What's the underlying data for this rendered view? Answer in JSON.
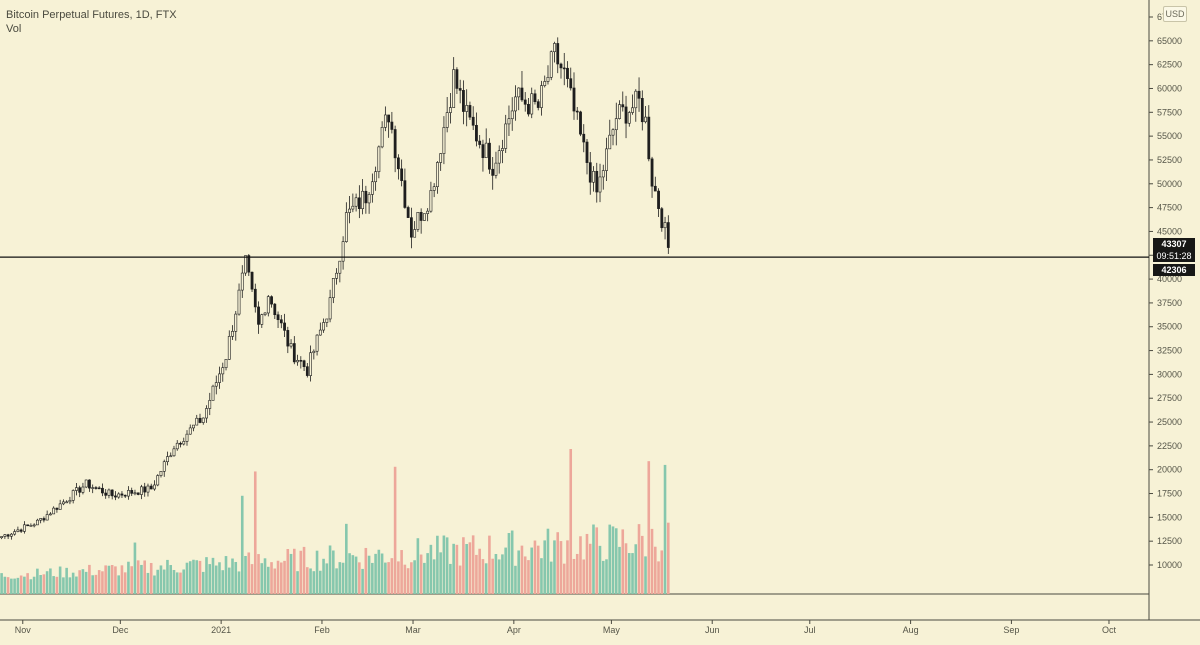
{
  "legend": {
    "title": "Bitcoin Perpetual Futures, 1D, FTX",
    "volume_label": "Vol"
  },
  "currency": "USD",
  "last_price_label": "43307",
  "countdown_label": "09:51:28",
  "line_price_label": "42306",
  "colors": {
    "background": "#f7f2d6",
    "candle": "#1e1e1e",
    "volume_up": "#86c7ad",
    "volume_down": "#eda79a",
    "grid_axis": "#4a4a40",
    "axis_text": "#555548"
  },
  "chart_data": {
    "type": "candlestick",
    "y_axis": {
      "ticks": [
        {
          "value": 10000,
          "label": "10000"
        },
        {
          "value": 12500,
          "label": "12500"
        },
        {
          "value": 15000,
          "label": "15000"
        },
        {
          "value": 17500,
          "label": "17500"
        },
        {
          "value": 20000,
          "label": "20000"
        },
        {
          "value": 22500,
          "label": "22500"
        },
        {
          "value": 25000,
          "label": "25000"
        },
        {
          "value": 27500,
          "label": "27500"
        },
        {
          "value": 30000,
          "label": "30000"
        },
        {
          "value": 32500,
          "label": "32500"
        },
        {
          "value": 35000,
          "label": "35000"
        },
        {
          "value": 37500,
          "label": "37500"
        },
        {
          "value": 40000,
          "label": "40000"
        },
        {
          "value": 42500,
          "label": "42500"
        },
        {
          "value": 45000,
          "label": "45000"
        },
        {
          "value": 47500,
          "label": "47500"
        },
        {
          "value": 50000,
          "label": "50000"
        },
        {
          "value": 52500,
          "label": "52500"
        },
        {
          "value": 55000,
          "label": "55000"
        },
        {
          "value": 57500,
          "label": "57500"
        },
        {
          "value": 60000,
          "label": "60000"
        },
        {
          "value": 62500,
          "label": "62500"
        },
        {
          "value": 65000,
          "label": "65000"
        },
        {
          "value": 67500,
          "label": "67500"
        }
      ],
      "range": [
        10000,
        67500
      ]
    },
    "x_axis": {
      "start_date": "2020-10-25",
      "end_date": "2021-10-13",
      "ticks": [
        {
          "date": "2020-11-01",
          "label": "Nov"
        },
        {
          "date": "2020-12-01",
          "label": "Dec"
        },
        {
          "date": "2021-01-01",
          "label": "2021"
        },
        {
          "date": "2021-02-01",
          "label": "Feb"
        },
        {
          "date": "2021-03-01",
          "label": "Mar"
        },
        {
          "date": "2021-04-01",
          "label": "Apr"
        },
        {
          "date": "2021-05-01",
          "label": "May"
        },
        {
          "date": "2021-06-01",
          "label": "Jun"
        },
        {
          "date": "2021-07-01",
          "label": "Jul"
        },
        {
          "date": "2021-08-01",
          "label": "Aug"
        },
        {
          "date": "2021-09-01",
          "label": "Sep"
        },
        {
          "date": "2021-10-01",
          "label": "Oct"
        }
      ]
    },
    "horizontal_line_price": 42306,
    "last_price": 43307,
    "price_anchors": [
      {
        "date": "2020-10-25",
        "price": 13000
      },
      {
        "date": "2020-11-05",
        "price": 14500
      },
      {
        "date": "2020-11-20",
        "price": 18500
      },
      {
        "date": "2020-11-28",
        "price": 17300
      },
      {
        "date": "2020-12-10",
        "price": 18000
      },
      {
        "date": "2020-12-17",
        "price": 22500
      },
      {
        "date": "2020-12-26",
        "price": 25500
      },
      {
        "date": "2021-01-02",
        "price": 32000
      },
      {
        "date": "2021-01-08",
        "price": 41500
      },
      {
        "date": "2021-01-12",
        "price": 35000
      },
      {
        "date": "2021-01-15",
        "price": 38500
      },
      {
        "date": "2021-01-22",
        "price": 32500
      },
      {
        "date": "2021-01-27",
        "price": 30500
      },
      {
        "date": "2021-02-03",
        "price": 37500
      },
      {
        "date": "2021-02-08",
        "price": 46500
      },
      {
        "date": "2021-02-14",
        "price": 48800
      },
      {
        "date": "2021-02-21",
        "price": 57500
      },
      {
        "date": "2021-02-28",
        "price": 45000
      },
      {
        "date": "2021-03-06",
        "price": 49000
      },
      {
        "date": "2021-03-13",
        "price": 61200
      },
      {
        "date": "2021-03-17",
        "price": 57000
      },
      {
        "date": "2021-03-25",
        "price": 52000
      },
      {
        "date": "2021-04-01",
        "price": 59000
      },
      {
        "date": "2021-04-08",
        "price": 58000
      },
      {
        "date": "2021-04-13",
        "price": 63500
      },
      {
        "date": "2021-04-16",
        "price": 61500
      },
      {
        "date": "2021-04-22",
        "price": 53500
      },
      {
        "date": "2021-04-26",
        "price": 49000
      },
      {
        "date": "2021-05-02",
        "price": 57000
      },
      {
        "date": "2021-05-09",
        "price": 58500
      },
      {
        "date": "2021-05-11",
        "price": 56500
      },
      {
        "date": "2021-05-13",
        "price": 50500
      },
      {
        "date": "2021-05-16",
        "price": 46500
      },
      {
        "date": "2021-05-18",
        "price": 43307
      }
    ],
    "volume_axis": {
      "ticks": [
        {
          "value": 10000,
          "label": "10000"
        },
        {
          "value": 12500,
          "label": "12500"
        },
        {
          "value": 15000,
          "label": "15000"
        },
        {
          "value": 17500,
          "label": "17500"
        },
        {
          "value": 20000,
          "label": "20000"
        },
        {
          "value": 22500,
          "label": "22500"
        },
        {
          "value": 25000,
          "label": "25000"
        }
      ]
    },
    "volume_spikes": [
      {
        "date": "2020-12-05",
        "value": 13000
      },
      {
        "date": "2021-01-07",
        "value": 18000
      },
      {
        "date": "2021-01-11",
        "value": 20600
      },
      {
        "date": "2021-02-08",
        "value": 15000
      },
      {
        "date": "2021-02-23",
        "value": 21100
      },
      {
        "date": "2021-04-18",
        "value": 23000
      },
      {
        "date": "2021-05-12",
        "value": 21700
      },
      {
        "date": "2021-05-17",
        "value": 21300
      }
    ],
    "volume_base_range": [
      8500,
      15000
    ]
  }
}
